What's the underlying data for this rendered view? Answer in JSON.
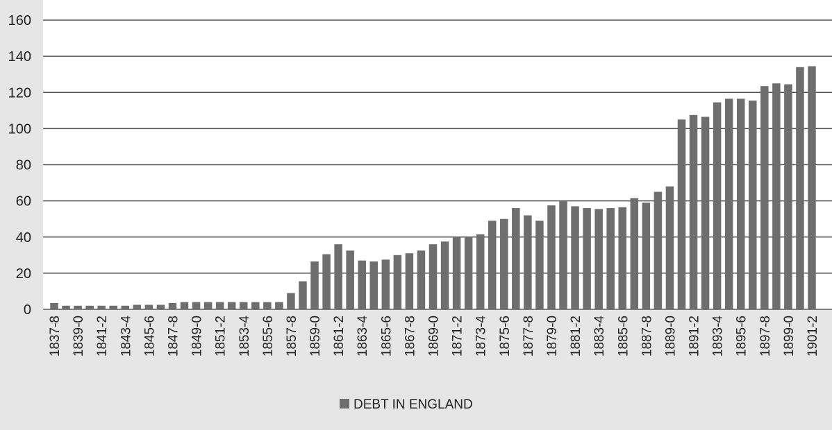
{
  "chart_data": {
    "type": "bar",
    "categories": [
      "1837-8",
      "1838-9",
      "1839-0",
      "1840-1",
      "1841-2",
      "1842-3",
      "1843-4",
      "1844-5",
      "1845-6",
      "1846-7",
      "1847-8",
      "1848-9",
      "1849-0",
      "1850-1",
      "1851-2",
      "1852-3",
      "1853-4",
      "1854-5",
      "1855-6",
      "1856-7",
      "1857-8",
      "1858-9",
      "1859-0",
      "1860-1",
      "1861-2",
      "1862-3",
      "1863-4",
      "1864-5",
      "1865-6",
      "1866-7",
      "1867-8",
      "1868-9",
      "1869-0",
      "1870-1",
      "1871-2",
      "1872-3",
      "1873-4",
      "1874-5",
      "1875-6",
      "1876-7",
      "1877-8",
      "1878-9",
      "1879-0",
      "1880-1",
      "1881-2",
      "1882-3",
      "1883-4",
      "1884-5",
      "1885-6",
      "1886-7",
      "1887-8",
      "1888-9",
      "1889-0",
      "1890-1",
      "1891-2",
      "1892-3",
      "1893-4",
      "1894-5",
      "1895-6",
      "1896-7",
      "1897-8",
      "1898-9",
      "1899-0",
      "1900-1",
      "1901-2"
    ],
    "tick_labels": [
      "1837-8",
      "1839-0",
      "1841-2",
      "1843-4",
      "1845-6",
      "1847-8",
      "1849-0",
      "1851-2",
      "1853-4",
      "1855-6",
      "1857-8",
      "1859-0",
      "1861-2",
      "1863-4",
      "1865-6",
      "1867-8",
      "1869-0",
      "1871-2",
      "1873-4",
      "1875-6",
      "1877-8",
      "1879-0",
      "1881-2",
      "1883-4",
      "1885-6",
      "1887-8",
      "1889-0",
      "1891-2",
      "1893-4",
      "1895-6",
      "1897-8",
      "1899-0",
      "1901-2"
    ],
    "series": [
      {
        "name": "DEBT IN ENGLAND",
        "color": "#6e6e6e",
        "values": [
          3.5,
          2,
          2,
          2,
          2,
          2,
          2,
          2.5,
          2.5,
          2.5,
          3.5,
          4,
          4,
          4,
          4,
          4,
          4,
          4,
          4,
          4,
          9,
          15.5,
          26.5,
          30.5,
          36,
          32.5,
          27,
          26.5,
          27.5,
          30,
          31,
          32.5,
          36,
          37.5,
          40,
          40,
          41.5,
          49,
          50,
          56,
          52,
          49,
          57.5,
          60,
          57,
          56,
          55.5,
          56,
          56.5,
          61.5,
          59,
          65,
          68,
          105,
          107.5,
          106.5,
          114.5,
          116.5,
          116.5,
          115.5,
          123.5,
          125,
          124.5,
          134,
          134.5
        ]
      }
    ],
    "ylim": [
      0,
      160
    ],
    "yticks": [
      0,
      20,
      40,
      60,
      80,
      100,
      120,
      140,
      160
    ],
    "grid": true,
    "legend_position": "bottom-center",
    "background": "#e6e6e6",
    "plot_background": "#ffffff",
    "gridline_color": "#555555"
  }
}
